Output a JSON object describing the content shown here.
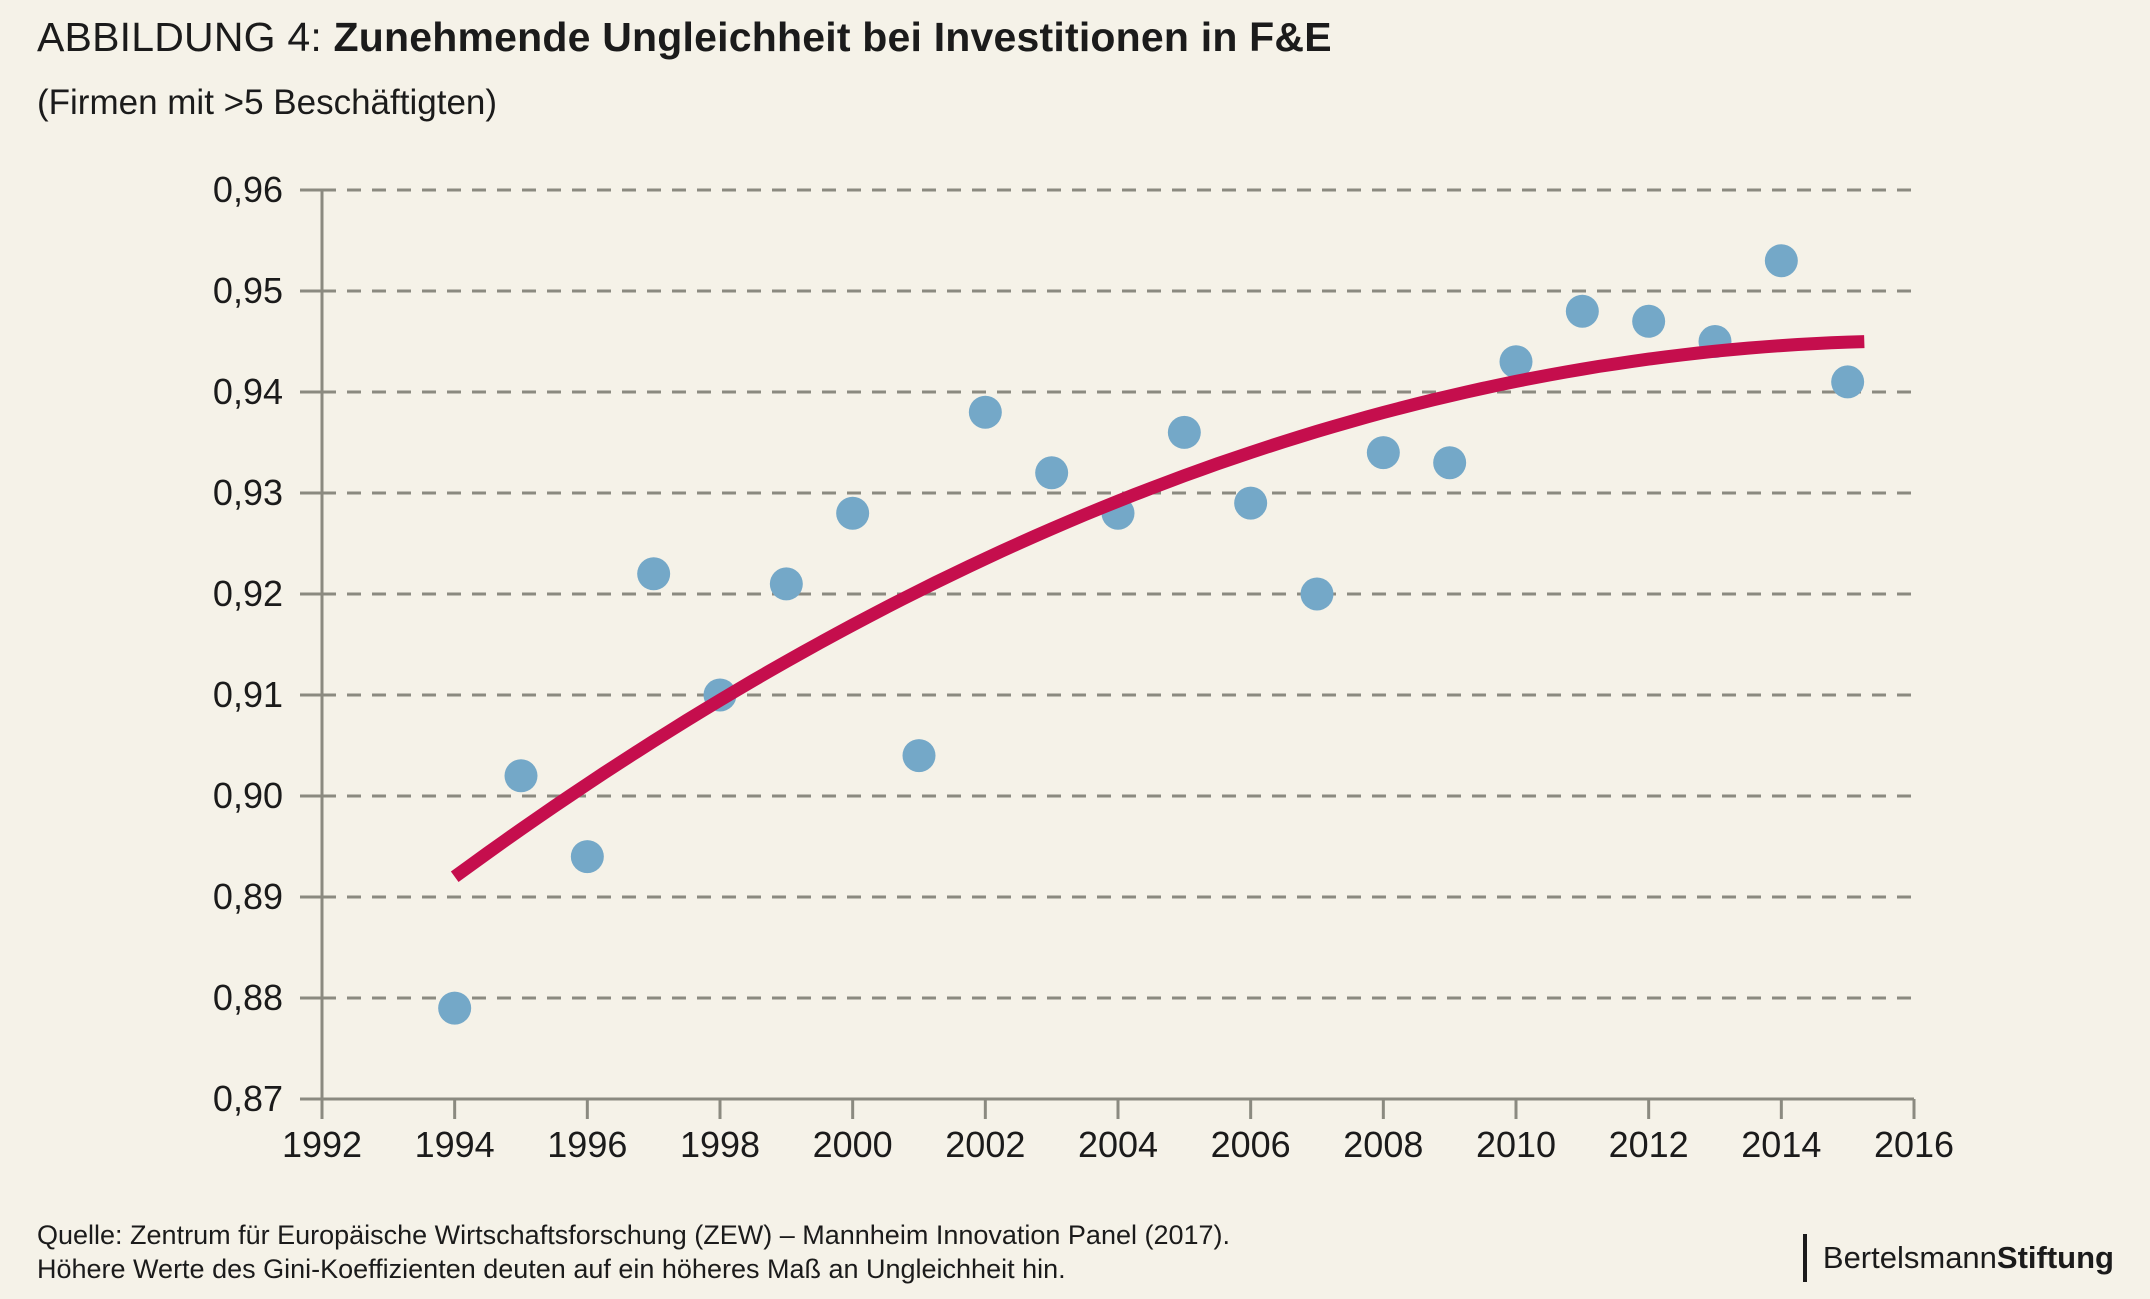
{
  "title": {
    "prefix": "ABBILDUNG 4: ",
    "main": "Zunehmende Ungleichheit bei Investitionen in F&E"
  },
  "subtitle": "(Firmen mit >5 Beschäftigten)",
  "source": {
    "line1": "Quelle: Zentrum für Europäische Wirtschaftsforschung (ZEW) – Mannheim Innovation Panel (2017).",
    "line2": "Höhere Werte des Gini-Koeffizienten deuten auf ein höheres Maß an Ungleichheit hin."
  },
  "logo": {
    "name": "Bertelsmann",
    "suffix": "Stiftung"
  },
  "colors": {
    "background": "#F5F2E8",
    "dot": "#74A8C8",
    "trend": "#C50E4D",
    "grid": "#8B8A80",
    "axis": "#8B8A80",
    "text": "#1B1B1B"
  },
  "chart_data": {
    "type": "scatter",
    "title": "ABBILDUNG 4: Zunehmende Ungleichheit bei Investitionen in F&E",
    "subtitle": "(Firmen mit >5 Beschäftigten)",
    "xlabel": "",
    "ylabel": "Gini-Koeffizient",
    "xlim": [
      1992,
      2016
    ],
    "ylim": [
      0.87,
      0.96
    ],
    "grid": true,
    "x_ticks": [
      1992,
      1994,
      1996,
      1998,
      2000,
      2002,
      2004,
      2006,
      2008,
      2010,
      2012,
      2014,
      2016
    ],
    "y_ticks": [
      0.87,
      0.88,
      0.89,
      0.9,
      0.91,
      0.92,
      0.93,
      0.94,
      0.95,
      0.96
    ],
    "y_tick_labels": [
      "0,87",
      "0,88",
      "0,89",
      "0,90",
      "0,91",
      "0,92",
      "0,93",
      "0,94",
      "0,95",
      "0,96"
    ],
    "x": [
      1994,
      1995,
      1996,
      1997,
      1998,
      1999,
      2000,
      2001,
      2002,
      2003,
      2004,
      2005,
      2006,
      2007,
      2008,
      2009,
      2010,
      2011,
      2012,
      2013,
      2014,
      2015
    ],
    "y": [
      0.879,
      0.902,
      0.894,
      0.922,
      0.91,
      0.921,
      0.928,
      0.904,
      0.938,
      0.932,
      0.928,
      0.936,
      0.929,
      0.92,
      0.934,
      0.933,
      0.943,
      0.948,
      0.947,
      0.945,
      0.953,
      0.941
    ],
    "trend": {
      "type": "quadratic",
      "base_year": 1994,
      "t_start": 0,
      "t_end": 21.3,
      "c": 0.892,
      "b": 0.0048082,
      "a": -0.00010892
    }
  }
}
